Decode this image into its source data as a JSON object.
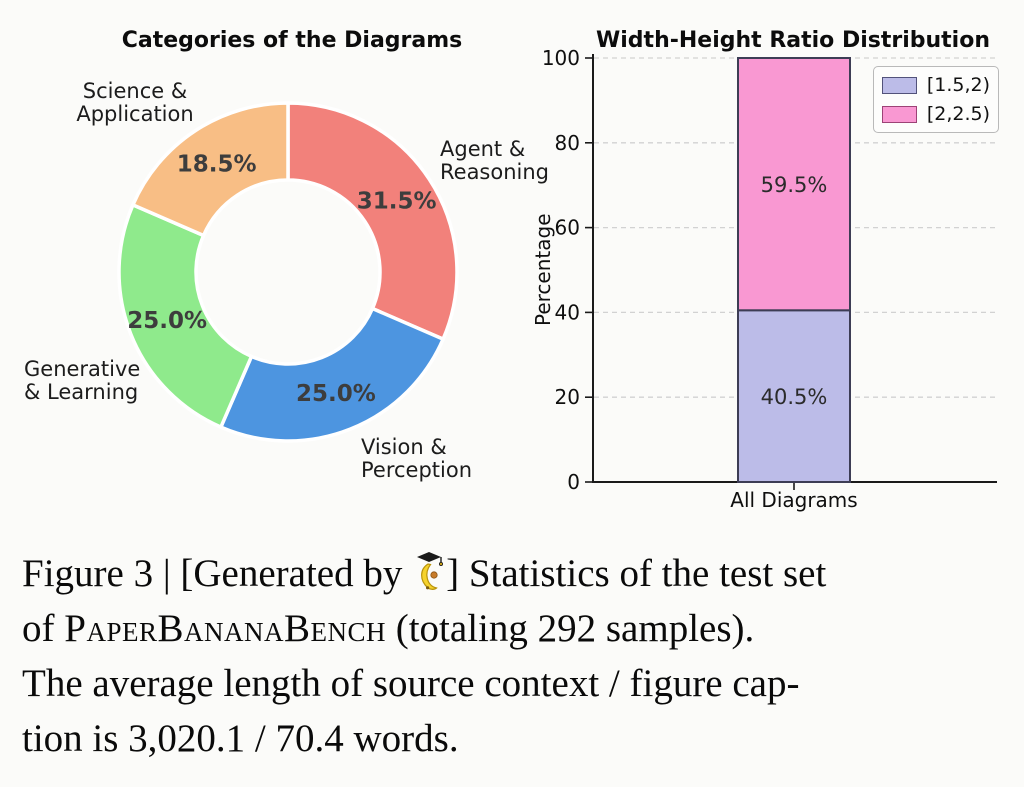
{
  "page": {
    "background": "#fbfbf9"
  },
  "chart_data": [
    {
      "type": "pie",
      "subtype": "donut",
      "title": "Categories of the Diagrams",
      "start_angle_deg": 0,
      "direction": "clockwise",
      "inner_radius_ratio": 0.54,
      "slices": [
        {
          "label": "Agent & Reasoning",
          "label_lines": [
            "Agent &",
            "Reasoning"
          ],
          "value": 31.5,
          "pct_label": "31.5%",
          "color": "#F2817B"
        },
        {
          "label": "Vision & Perception",
          "label_lines": [
            "Vision &",
            "Perception"
          ],
          "value": 25.0,
          "pct_label": "25.0%",
          "color": "#4D95E0"
        },
        {
          "label": "Generative & Learning",
          "label_lines": [
            "Generative",
            "& Learning"
          ],
          "value": 25.0,
          "pct_label": "25.0%",
          "color": "#8FEA8C"
        },
        {
          "label": "Science & Application",
          "label_lines": [
            "Science &",
            "Application"
          ],
          "value": 18.5,
          "pct_label": "18.5%",
          "color": "#F8BE85"
        }
      ]
    },
    {
      "type": "bar",
      "stacked": true,
      "title": "Width-Height Ratio Distribution",
      "categories": [
        "All Diagrams"
      ],
      "series": [
        {
          "name": "[1.5,2)",
          "values": [
            40.5
          ],
          "bar_label": "40.5%",
          "color": "#BCBCE8",
          "edge": "#3D3D55",
          "legend_edge": "#52527A"
        },
        {
          "name": "[2,2.5)",
          "values": [
            59.5
          ],
          "bar_label": "59.5%",
          "color": "#F998D2",
          "edge": "#3D3D55",
          "legend_edge": "#9C4276"
        }
      ],
      "xlabel": "",
      "ylabel": "Percentage",
      "ylim": [
        0,
        100
      ],
      "yticks": [
        0,
        20,
        40,
        60,
        80,
        100
      ],
      "grid": "horizontal dashed",
      "legend_position": "upper right"
    }
  ],
  "caption": {
    "line1_pre": "Figure 3 | [Generated by ",
    "line1_post": "] Statistics of the test set",
    "line2_pre": "of ",
    "line2_brand": "PaperBananaBench",
    "line2_post": " (totaling 292 samples).",
    "line3": "The average length of source context / figure cap-",
    "line4": "tion is 3,020.1 / 70.4 words."
  }
}
